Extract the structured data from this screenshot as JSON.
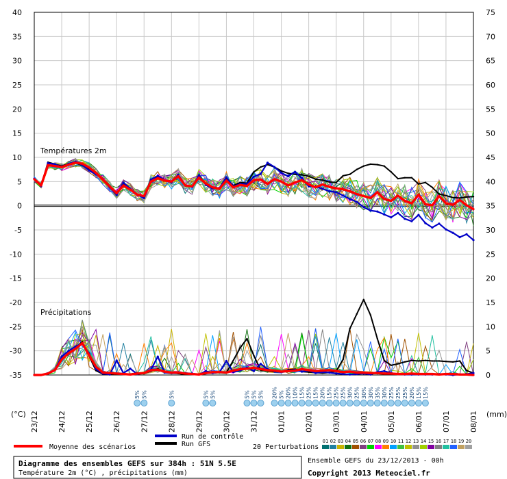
{
  "chart_data": {
    "type": "line",
    "title": "Diagramme des ensembles GEFS sur 384h : 51N 5.5E",
    "subtitle": "Température 2m (°C) , précipitations (mm)",
    "left_unit": "(°C)",
    "right_unit": "(mm)",
    "y_left_ticks": [
      "40",
      "35",
      "30",
      "25",
      "20",
      "15",
      "10",
      "5",
      "0",
      "-5",
      "-10",
      "-15",
      "-20",
      "-25",
      "-30",
      "-35"
    ],
    "y_right_ticks": [
      "75",
      "70",
      "65",
      "60",
      "55",
      "50",
      "45",
      "40",
      "35",
      "30",
      "25",
      "20",
      "15",
      "10",
      "5",
      "0"
    ],
    "ylim_left": [
      -35,
      40
    ],
    "ylim_right": [
      0,
      75
    ],
    "x_labels": [
      "23/12",
      "24/12",
      "25/12",
      "26/12",
      "27/12",
      "28/12",
      "29/12",
      "30/12",
      "31/12",
      "01/01",
      "02/01",
      "03/01",
      "04/01",
      "05/01",
      "06/01",
      "07/01",
      "08/01"
    ],
    "panel_temp_label": "Températures 2m",
    "panel_precip_label": "Précipitations",
    "temperature": {
      "moyenne": [
        5.5,
        4.2,
        8.4,
        8.2,
        8.0,
        8.5,
        8.9,
        8.7,
        7.9,
        6.8,
        5.4,
        4.0,
        2.6,
        4.2,
        3.3,
        2.3,
        2.0,
        5.0,
        5.7,
        5.2,
        5.0,
        6.1,
        4.2,
        4.0,
        5.8,
        4.6,
        3.8,
        3.5,
        5.2,
        3.8,
        4.3,
        4.1,
        5.3,
        5.4,
        4.5,
        5.5,
        5.0,
        4.2,
        4.8,
        5.3,
        4.4,
        3.8,
        4.4,
        3.9,
        3.6,
        3.4,
        3.0,
        2.4,
        2.0,
        1.6,
        2.8,
        1.4,
        1.0,
        2.1,
        1.0,
        0.5,
        2.3,
        0.3,
        0.1,
        2.0,
        0.5,
        0.2,
        1.2,
        0.1,
        -0.7
      ],
      "controle": [
        5.6,
        4.0,
        8.8,
        8.6,
        8.0,
        8.7,
        9.1,
        8.4,
        7.3,
        6.5,
        5.5,
        3.9,
        2.2,
        4.8,
        3.5,
        2.3,
        1.6,
        5.4,
        6.2,
        5.3,
        4.8,
        6.4,
        4.2,
        3.9,
        6.3,
        4.3,
        3.6,
        3.7,
        5.9,
        4.0,
        4.5,
        4.5,
        6.0,
        6.6,
        8.9,
        8.0,
        6.8,
        6.1,
        7.0,
        5.7,
        4.0,
        4.0,
        3.5,
        3.0,
        2.8,
        2.1,
        1.4,
        0.8,
        -0.3,
        -1.0,
        -1.2,
        -1.8,
        -2.4,
        -1.5,
        -2.7,
        -3.2,
        -1.9,
        -3.6,
        -4.5,
        -3.7,
        -4.9,
        -5.6,
        -6.5,
        -5.9,
        -7.1
      ],
      "gfs": [
        5.6,
        4.1,
        9.0,
        8.6,
        8.2,
        8.7,
        8.9,
        8.3,
        7.7,
        6.8,
        5.3,
        3.8,
        2.5,
        4.4,
        3.3,
        2.2,
        1.8,
        5.5,
        6.0,
        5.3,
        5.1,
        6.3,
        4.3,
        4.0,
        6.0,
        4.5,
        3.7,
        3.4,
        5.6,
        4.2,
        4.8,
        4.7,
        7.0,
        8.0,
        8.5,
        8.0,
        7.2,
        6.7,
        6.5,
        6.4,
        6.1,
        5.5,
        5.3,
        4.9,
        4.8,
        6.2,
        6.5,
        7.5,
        8.2,
        8.6,
        8.5,
        8.2,
        7.0,
        5.6,
        5.8,
        5.8,
        4.5,
        4.8,
        3.8,
        2.4,
        2.1,
        1.7,
        1.6,
        1.8,
        1.9
      ]
    },
    "precipitation": {
      "moyenne": [
        0,
        0,
        0.3,
        1.0,
        3.2,
        4.5,
        5.4,
        6.6,
        4.1,
        1.7,
        0.5,
        0.4,
        0.3,
        0.2,
        0.1,
        0.3,
        0.4,
        1.0,
        1.1,
        0.7,
        0.5,
        0.5,
        0.3,
        0.2,
        0.1,
        0.4,
        0.6,
        0.6,
        0.5,
        0.9,
        1.2,
        1.3,
        1.5,
        1.2,
        1.0,
        0.9,
        0.7,
        0.8,
        0.9,
        1.2,
        1.0,
        0.8,
        0.9,
        1.0,
        0.8,
        0.6,
        0.7,
        0.5,
        0.5,
        0.4,
        0.4,
        0.3,
        0.3,
        0.2,
        0.2,
        0.3,
        0.2,
        0.2,
        0.2,
        0.1,
        0.2,
        0.2,
        0.1,
        0.1,
        0.0
      ],
      "controle": [
        0,
        0,
        0.3,
        1.1,
        3.8,
        5.0,
        5.9,
        6.5,
        4.5,
        1.2,
        0.3,
        0.1,
        3.0,
        0.4,
        1.3,
        0.2,
        0.4,
        1.1,
        3.8,
        0.5,
        0.4,
        0.6,
        0.4,
        0.3,
        0.1,
        0.8,
        0.4,
        0.6,
        2.9,
        0.6,
        0.9,
        1.5,
        0.8,
        2.3,
        1.2,
        0.8,
        0.6,
        0.9,
        1.1,
        0.7,
        0.9,
        0.4,
        0.6,
        0.5,
        0.3,
        0.2,
        0.1,
        0.2,
        0.3,
        0.1,
        0.6,
        0.8,
        0.4,
        0.2,
        0.1,
        0.1,
        0.1,
        0.1,
        0.1,
        0.2,
        0.1,
        0.0,
        0.1,
        0.2,
        0.4
      ],
      "gfs": [
        0,
        0,
        0.2,
        1.1,
        3.3,
        4.6,
        5.5,
        6.9,
        3.9,
        0.9,
        0.2,
        0.1,
        0.3,
        0.2,
        0.2,
        0.4,
        0.3,
        0.8,
        1.3,
        0.6,
        0.5,
        0.3,
        0.1,
        0.1,
        0.2,
        0.4,
        0.4,
        0.5,
        0.5,
        3.0,
        5.6,
        7.5,
        4.0,
        1.0,
        0.8,
        0.7,
        0.6,
        1.1,
        1.2,
        0.7,
        0.6,
        0.5,
        0.4,
        0.5,
        0.8,
        3.2,
        9.6,
        12.6,
        15.6,
        12.4,
        7.5,
        3.0,
        2.0,
        2.3,
        2.7,
        3.0,
        2.9,
        3.0,
        2.9,
        2.9,
        2.8,
        2.7,
        2.9,
        0.9,
        0.4
      ]
    },
    "snow_probability": [
      {
        "t": 15,
        "text": "5%"
      },
      {
        "t": 16,
        "text": "5%"
      },
      {
        "t": 20,
        "text": "5%"
      },
      {
        "t": 25,
        "text": "5%"
      },
      {
        "t": 26,
        "text": "5%"
      },
      {
        "t": 31,
        "text": "5%"
      },
      {
        "t": 32,
        "text": "5%"
      },
      {
        "t": 33,
        "text": "5%"
      },
      {
        "t": 35,
        "text": "20%"
      },
      {
        "t": 36,
        "text": "5%"
      },
      {
        "t": 37,
        "text": "20%"
      },
      {
        "t": 38,
        "text": "10%"
      },
      {
        "t": 39,
        "text": "15%"
      },
      {
        "t": 40,
        "text": "25%"
      },
      {
        "t": 41,
        "text": "15%"
      },
      {
        "t": 42,
        "text": "20%"
      },
      {
        "t": 43,
        "text": "15%"
      },
      {
        "t": 44,
        "text": "25%"
      },
      {
        "t": 45,
        "text": "25%"
      },
      {
        "t": 46,
        "text": "30%"
      },
      {
        "t": 47,
        "text": "25%"
      },
      {
        "t": 48,
        "text": "30%"
      },
      {
        "t": 49,
        "text": "30%"
      },
      {
        "t": 50,
        "text": "35%"
      },
      {
        "t": 51,
        "text": "30%"
      },
      {
        "t": 52,
        "text": "25%"
      },
      {
        "t": 53,
        "text": "25%"
      },
      {
        "t": 54,
        "text": "25%"
      },
      {
        "t": 55,
        "text": "20%"
      },
      {
        "t": 56,
        "text": "15%"
      },
      {
        "t": 57,
        "text": "15%"
      }
    ],
    "legend": {
      "moyenne": "Moyenne des scénarios",
      "controle": "Run de contrôle",
      "gfs": "Run GFS",
      "perturbations": "20 Perturbations",
      "perturbation_numbers": [
        "01",
        "02",
        "03",
        "04",
        "05",
        "06",
        "07",
        "08",
        "09",
        "10",
        "11",
        "12",
        "13",
        "14",
        "15",
        "16",
        "17",
        "18",
        "19",
        "20"
      ]
    },
    "colors": {
      "moyenne": "#ff0000",
      "controle": "#0000c8",
      "gfs": "#000000",
      "perturbations": [
        "#007070",
        "#2080a0",
        "#c8b400",
        "#107010",
        "#a05000",
        "#804080",
        "#00d000",
        "#ff00ff",
        "#ff8000",
        "#00a0ff",
        "#40c040",
        "#c0c000",
        "#909090",
        "#a0d000",
        "#8000a0",
        "#808080",
        "#20c0a0",
        "#2060ff",
        "#c0a060",
        "#a0a0a0"
      ]
    },
    "info": {
      "run": "Ensemble GEFS du 23/12/2013 - 00h",
      "copyright": "Copyright 2013 Meteociel.fr"
    }
  }
}
